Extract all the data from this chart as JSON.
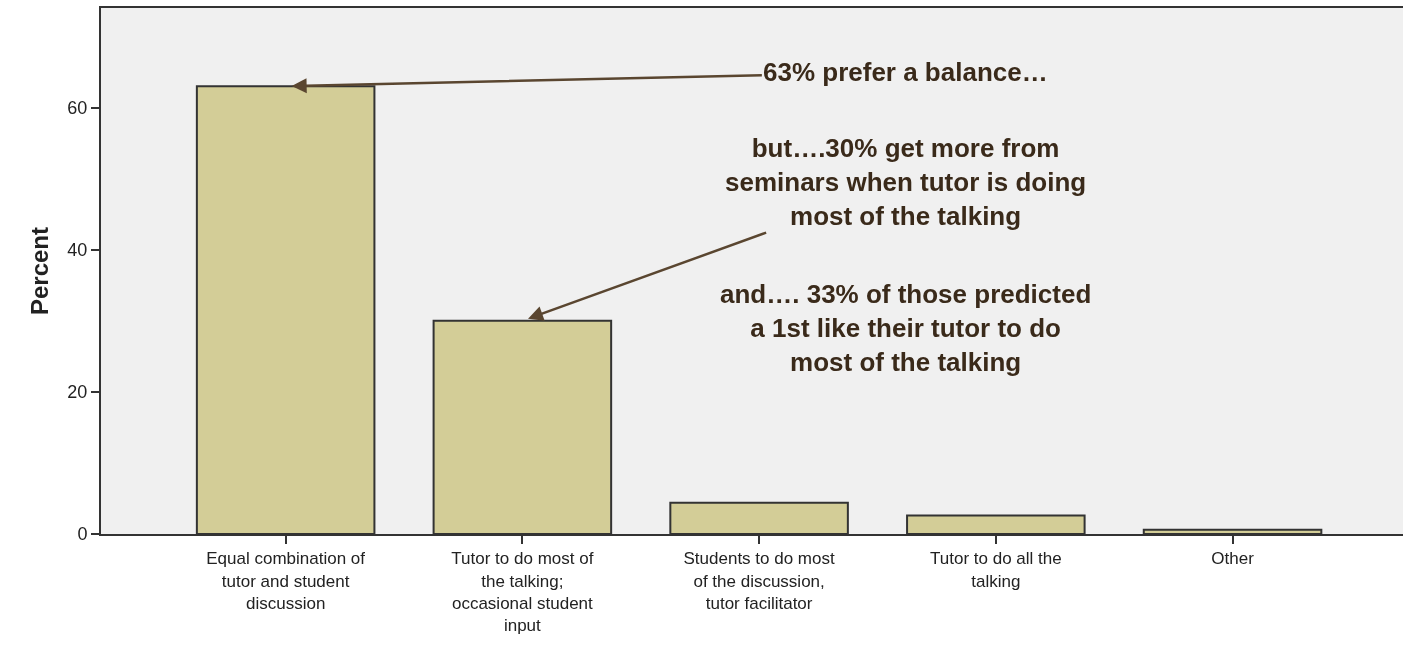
{
  "chart_data": {
    "type": "bar",
    "ylabel": "Percent",
    "categories": [
      "Equal combination of\ntutor and student\ndiscussion",
      "Tutor to do most of\nthe talking;\noccasional student\ninput",
      "Students to do most\nof the discussion,\ntutor facilitator",
      "Tutor to do all the\ntalking",
      "Other"
    ],
    "values": [
      63,
      30,
      4.4,
      2.6,
      0.6
    ],
    "color": "#d3cd97",
    "ylim": [
      0,
      74
    ],
    "yticks": [
      0,
      20,
      40,
      60
    ],
    "grid": false,
    "annotations": [
      {
        "text": "63% prefer a balance…",
        "x": "Equal combination of\ntutor and student\ndiscussion",
        "y": 63
      },
      {
        "text": "but….30% get more from\nseminars when tutor is doing\nmost of the talking",
        "x": "Tutor to do most of\nthe talking;\noccasional student\ninput",
        "y": 30
      },
      "and…. 33% of those predicted\na 1st like their tutor to do\nmost of the talking"
    ]
  }
}
